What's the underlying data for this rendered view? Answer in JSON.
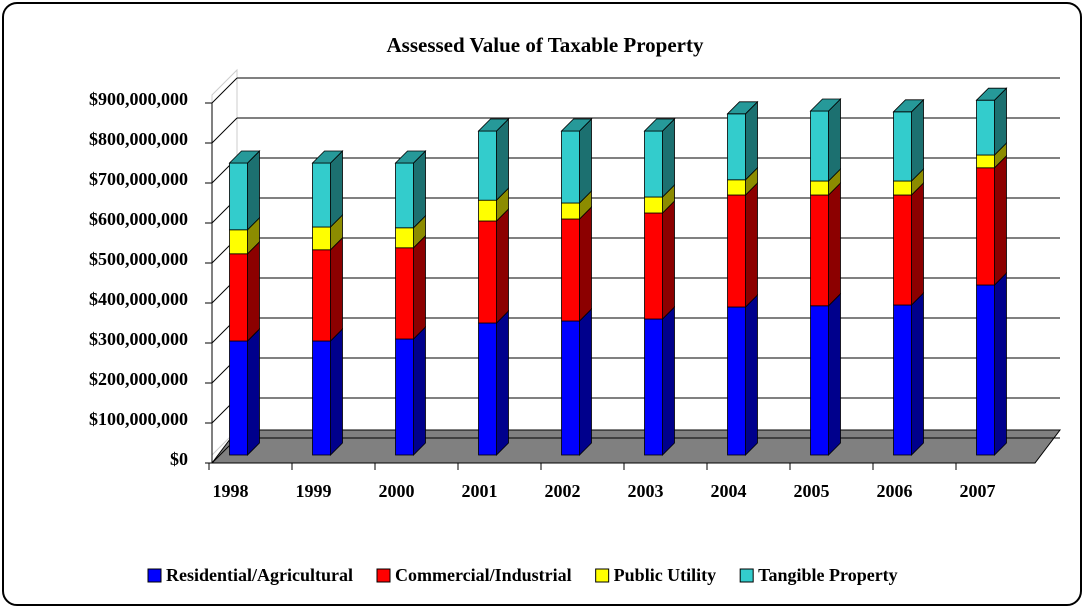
{
  "chart_data": {
    "type": "bar",
    "stacked": true,
    "title": "Assessed Value of Taxable Property",
    "categories": [
      "1998",
      "1999",
      "2000",
      "2001",
      "2002",
      "2003",
      "2004",
      "2005",
      "2006",
      "2007"
    ],
    "series": [
      {
        "name": "Residential/Agricultural",
        "color": "#0000ff",
        "values": [
          285000000,
          285000000,
          290000000,
          330000000,
          335000000,
          340000000,
          370000000,
          373000000,
          375000000,
          425000000
        ]
      },
      {
        "name": "Commercial/Industrial",
        "color": "#ff0000",
        "values": [
          218000000,
          228000000,
          228000000,
          255000000,
          255000000,
          265000000,
          280000000,
          277000000,
          275000000,
          293000000
        ]
      },
      {
        "name": "Public Utility",
        "color": "#ffff00",
        "values": [
          60000000,
          57000000,
          50000000,
          52000000,
          40000000,
          40000000,
          38000000,
          35000000,
          35000000,
          32000000
        ]
      },
      {
        "name": "Tangible Property",
        "color": "#33cccc",
        "values": [
          167000000,
          160000000,
          162000000,
          173000000,
          180000000,
          165000000,
          165000000,
          175000000,
          173000000,
          137000000
        ]
      }
    ],
    "ylim": [
      0,
      900000000
    ],
    "yticks": [
      {
        "value": 0,
        "label": "$0"
      },
      {
        "value": 100000000,
        "label": "$100,000,000"
      },
      {
        "value": 200000000,
        "label": "$200,000,000"
      },
      {
        "value": 300000000,
        "label": "$300,000,000"
      },
      {
        "value": 400000000,
        "label": "$400,000,000"
      },
      {
        "value": 500000000,
        "label": "$500,000,000"
      },
      {
        "value": 600000000,
        "label": "$600,000,000"
      },
      {
        "value": 700000000,
        "label": "$700,000,000"
      },
      {
        "value": 800000000,
        "label": "$800,000,000"
      },
      {
        "value": 900000000,
        "label": "$900,000,000"
      }
    ],
    "grid": true,
    "legend": "bottom"
  }
}
